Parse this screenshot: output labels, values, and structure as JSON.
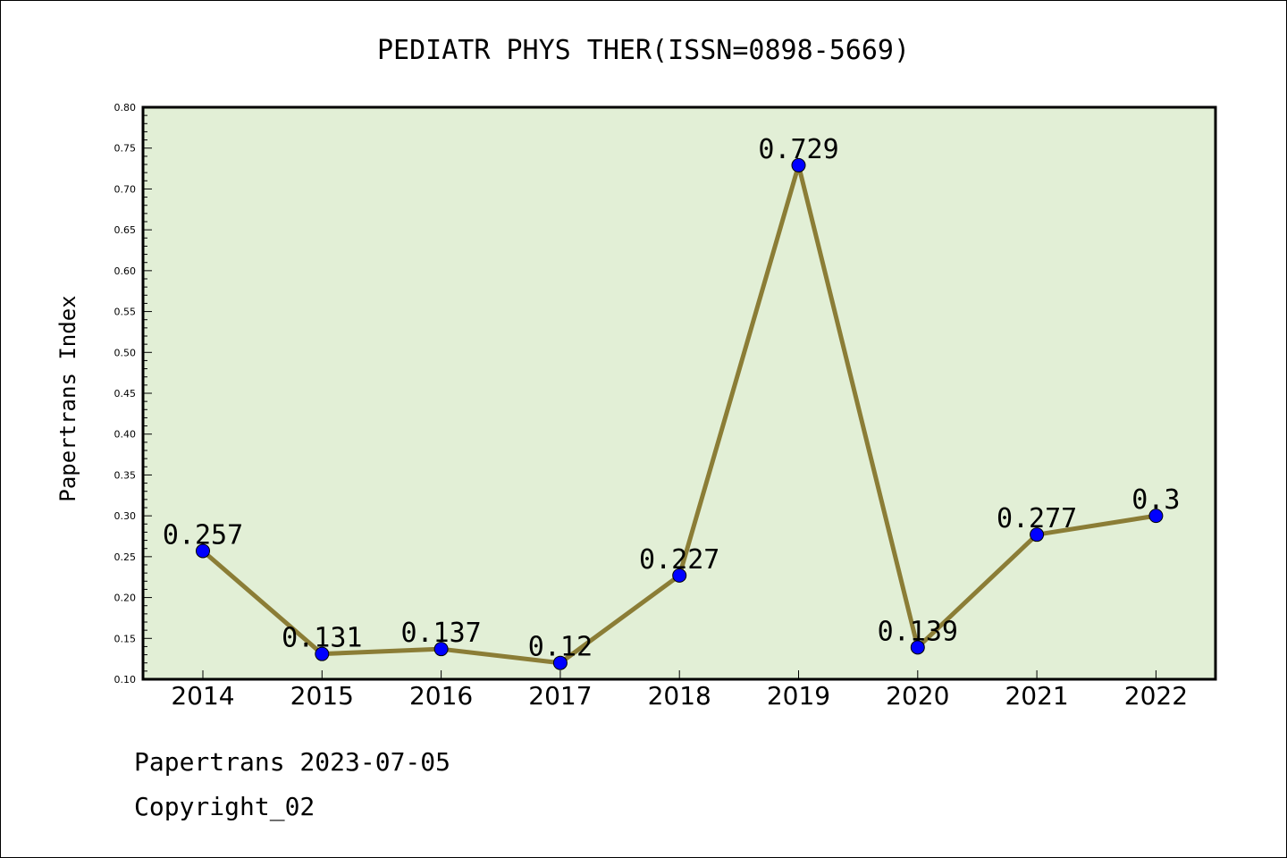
{
  "footer": {
    "line1": "Papertrans 2023-07-05",
    "line2": "Copyright_02"
  },
  "chart_data": {
    "type": "line",
    "title": "PEDIATR PHYS THER(ISSN=0898-5669)",
    "ylabel": "Papertrans Index",
    "xlabel": "",
    "categories": [
      "2014",
      "2015",
      "2016",
      "2017",
      "2018",
      "2019",
      "2020",
      "2021",
      "2022"
    ],
    "values": [
      0.257,
      0.131,
      0.137,
      0.12,
      0.227,
      0.729,
      0.139,
      0.277,
      0.3
    ],
    "data_labels": [
      "0.257",
      "0.131",
      "0.137",
      "0.12",
      "0.227",
      "0.729",
      "0.139",
      "0.277",
      "0.3"
    ],
    "ylim": [
      0.1,
      0.8
    ],
    "yticks": [
      "0.10",
      "0.15",
      "0.20",
      "0.25",
      "0.30",
      "0.35",
      "0.40",
      "0.45",
      "0.50",
      "0.55",
      "0.60",
      "0.65",
      "0.70",
      "0.75",
      "0.80"
    ],
    "grid": false,
    "legend": "none",
    "colors": {
      "plot_bg": "#e2efd6",
      "line": "#8b7d36",
      "marker": "#0000ff"
    }
  }
}
